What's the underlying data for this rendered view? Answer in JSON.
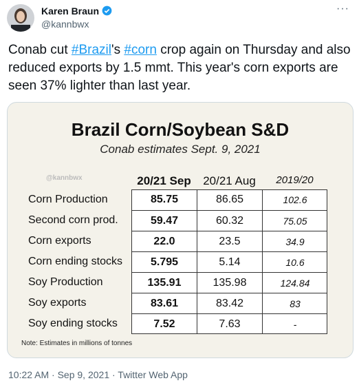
{
  "header": {
    "name": "Karen Braun",
    "handle": "@kannbwx",
    "menu": "···"
  },
  "tweet": {
    "segments": [
      {
        "text": "Conab cut "
      },
      {
        "text": "#Brazil",
        "link": true
      },
      {
        "text": "'s "
      },
      {
        "text": "#corn",
        "link": true
      },
      {
        "text": " crop again on Thursday and also reduced exports by 1.5 mmt. This year's corn exports are seen 37% lighter than last year."
      }
    ]
  },
  "image": {
    "title": "Brazil Corn/Soybean S&D",
    "subtitle": "Conab estimates Sept. 9, 2021",
    "watermark": "@kannbwx",
    "table": {
      "columns": [
        "20/21 Sep",
        "20/21 Aug",
        "2019/20"
      ],
      "rows": [
        [
          "Corn Production",
          "85.75",
          "86.65",
          "102.6"
        ],
        [
          "Second corn prod.",
          "59.47",
          "60.32",
          "75.05"
        ],
        [
          "Corn exports",
          "22.0",
          "23.5",
          "34.9"
        ],
        [
          "Corn ending stocks",
          "5.795",
          "5.14",
          "10.6"
        ],
        [
          "Soy Production",
          "135.91",
          "135.98",
          "124.84"
        ],
        [
          "Soy exports",
          "83.61",
          "83.42",
          "83"
        ],
        [
          "Soy ending stocks",
          "7.52",
          "7.63",
          "-"
        ]
      ]
    },
    "note": "Note: Estimates in millions of tonnes"
  },
  "footer": "10:22 AM · Sep 9, 2021 · Twitter Web App"
}
